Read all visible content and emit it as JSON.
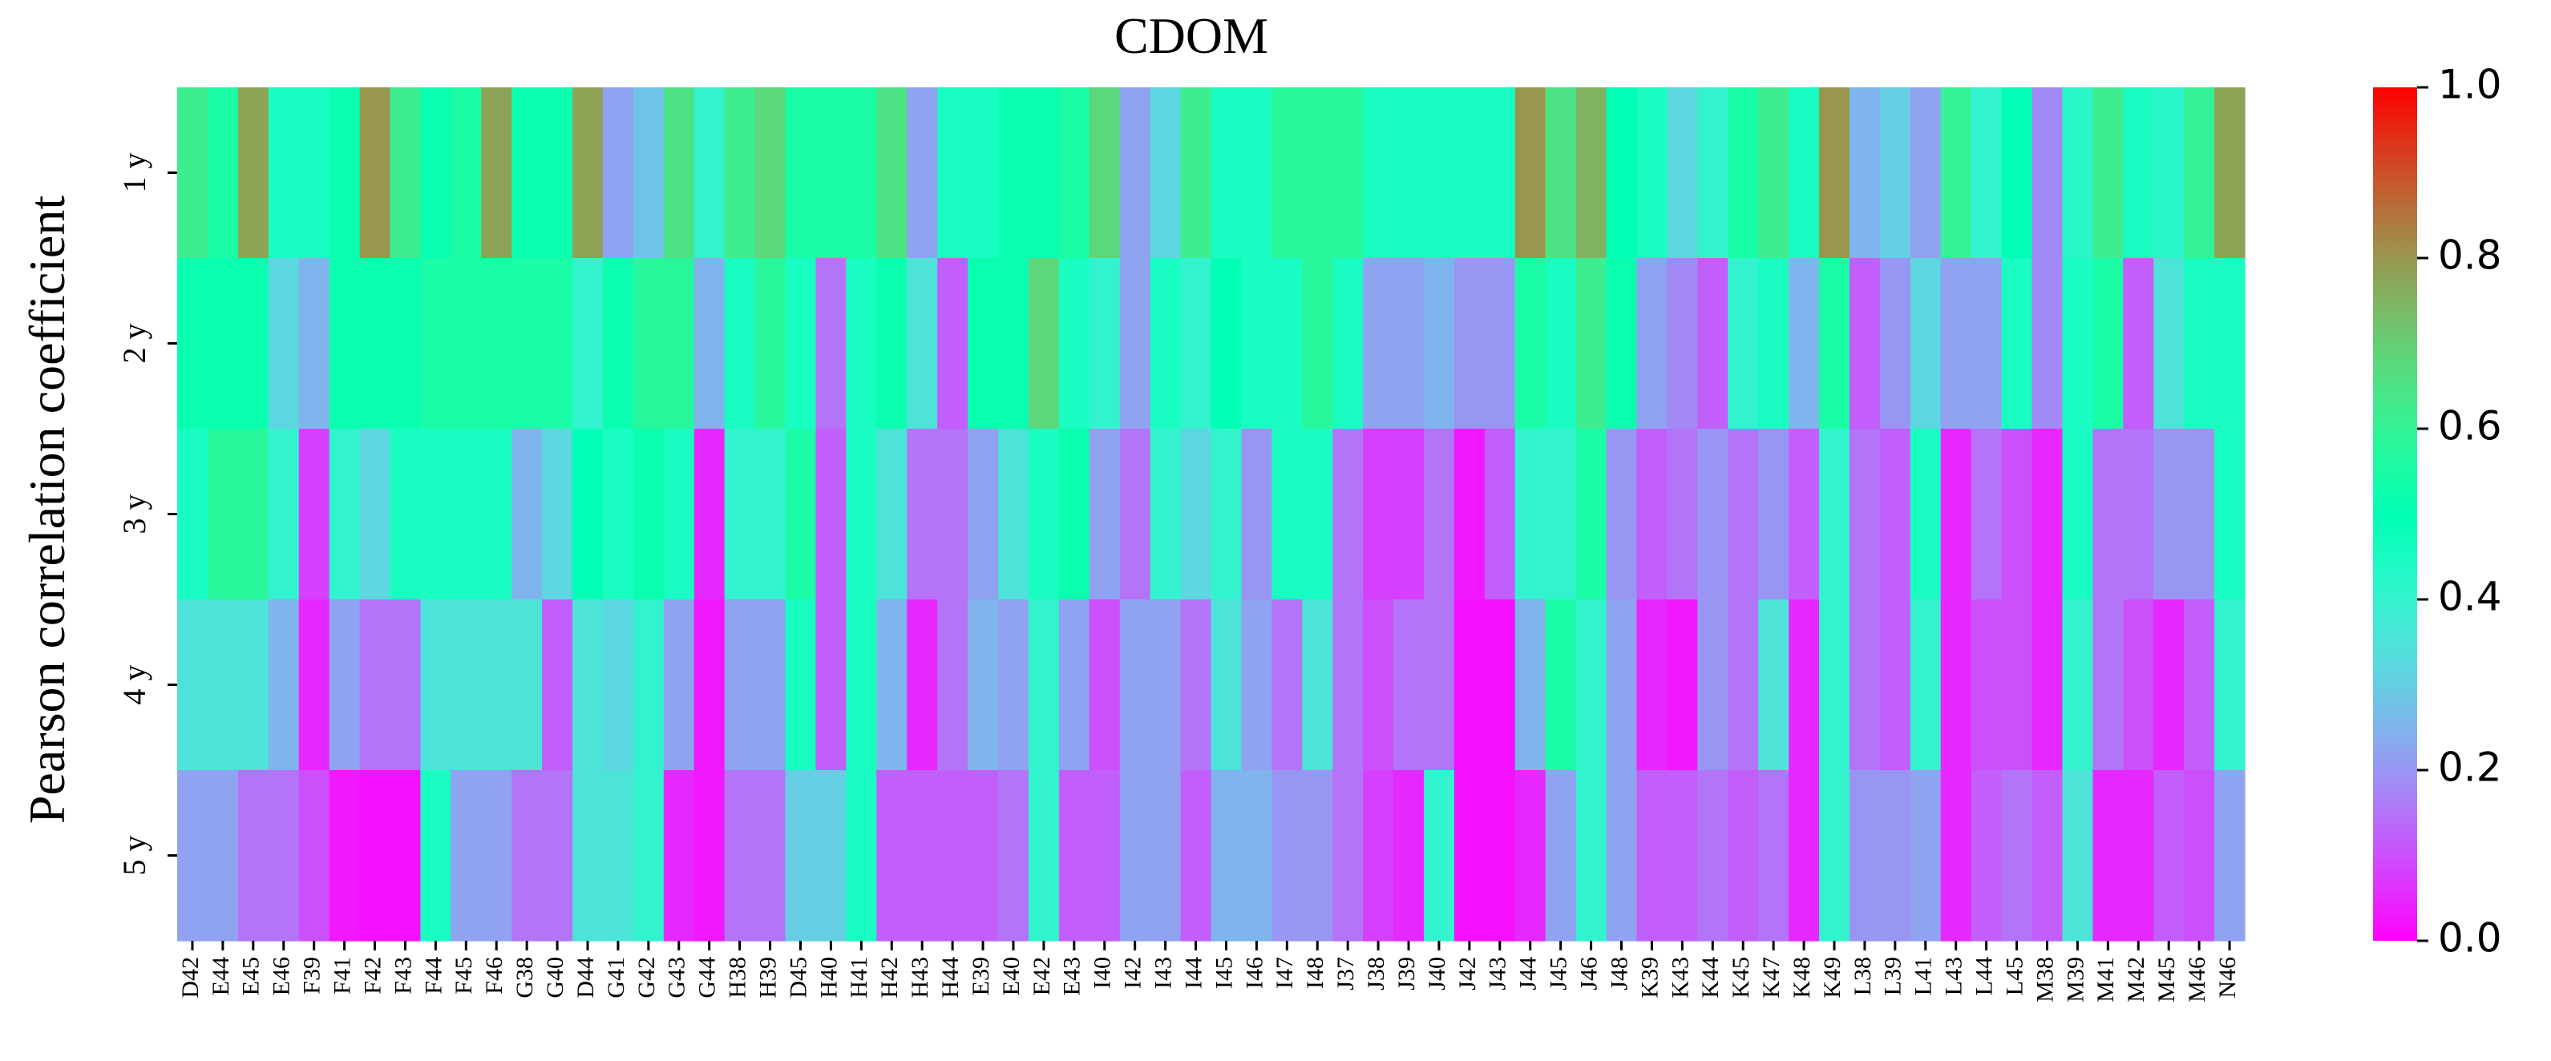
{
  "chart_data": {
    "type": "heatmap",
    "title": "CDOM",
    "ylabel": "Pearson correlation coefficient",
    "xlabel": "",
    "rows": [
      "1 y",
      "2 y",
      "3 y",
      "4 y",
      "5 y"
    ],
    "columns": [
      "D42",
      "E44",
      "E45",
      "E46",
      "F39",
      "F41",
      "F42",
      "F43",
      "F44",
      "F45",
      "F46",
      "G38",
      "G40",
      "D44",
      "G41",
      "G42",
      "G43",
      "G44",
      "H38",
      "H39",
      "D45",
      "H40",
      "H41",
      "H42",
      "H43",
      "H44",
      "E39",
      "E40",
      "E42",
      "E43",
      "I40",
      "I42",
      "I43",
      "I44",
      "I45",
      "I46",
      "I47",
      "I48",
      "J37",
      "J38",
      "J39",
      "J40",
      "J42",
      "J43",
      "J44",
      "J45",
      "J46",
      "J48",
      "K39",
      "K43",
      "K44",
      "K45",
      "K47",
      "K48",
      "K49",
      "L38",
      "L39",
      "L41",
      "L43",
      "L44",
      "L45",
      "M38",
      "M39",
      "M41",
      "M42",
      "M45",
      "M46",
      "N46"
    ],
    "values": [
      [
        0.62,
        0.55,
        0.78,
        0.45,
        0.45,
        0.52,
        0.8,
        0.62,
        0.52,
        0.55,
        0.78,
        0.52,
        0.52,
        0.78,
        0.22,
        0.28,
        0.65,
        0.4,
        0.62,
        0.68,
        0.55,
        0.55,
        0.55,
        0.65,
        0.22,
        0.45,
        0.45,
        0.52,
        0.52,
        0.55,
        0.68,
        0.22,
        0.32,
        0.62,
        0.45,
        0.45,
        0.58,
        0.58,
        0.58,
        0.45,
        0.45,
        0.45,
        0.45,
        0.45,
        0.8,
        0.65,
        0.75,
        0.5,
        0.45,
        0.32,
        0.4,
        0.55,
        0.62,
        0.45,
        0.8,
        0.25,
        0.3,
        0.22,
        0.6,
        0.4,
        0.5,
        0.18,
        0.42,
        0.62,
        0.45,
        0.42,
        0.6,
        0.78
      ],
      [
        0.52,
        0.52,
        0.52,
        0.32,
        0.25,
        0.52,
        0.52,
        0.52,
        0.55,
        0.55,
        0.55,
        0.55,
        0.55,
        0.4,
        0.52,
        0.58,
        0.58,
        0.25,
        0.45,
        0.58,
        0.45,
        0.15,
        0.45,
        0.52,
        0.35,
        0.12,
        0.52,
        0.52,
        0.68,
        0.45,
        0.4,
        0.22,
        0.45,
        0.4,
        0.5,
        0.45,
        0.45,
        0.58,
        0.45,
        0.22,
        0.22,
        0.25,
        0.2,
        0.2,
        0.55,
        0.45,
        0.62,
        0.52,
        0.22,
        0.18,
        0.12,
        0.4,
        0.45,
        0.25,
        0.55,
        0.12,
        0.2,
        0.32,
        0.22,
        0.22,
        0.45,
        0.18,
        0.45,
        0.55,
        0.12,
        0.35,
        0.45,
        0.45
      ],
      [
        0.45,
        0.58,
        0.58,
        0.4,
        0.08,
        0.4,
        0.32,
        0.45,
        0.45,
        0.45,
        0.45,
        0.25,
        0.32,
        0.5,
        0.45,
        0.52,
        0.45,
        0.05,
        0.4,
        0.4,
        0.55,
        0.12,
        0.45,
        0.35,
        0.15,
        0.15,
        0.22,
        0.35,
        0.45,
        0.52,
        0.22,
        0.15,
        0.4,
        0.32,
        0.4,
        0.2,
        0.45,
        0.45,
        0.15,
        0.08,
        0.08,
        0.15,
        0.03,
        0.12,
        0.4,
        0.4,
        0.55,
        0.2,
        0.12,
        0.15,
        0.2,
        0.15,
        0.2,
        0.12,
        0.4,
        0.15,
        0.12,
        0.45,
        0.05,
        0.15,
        0.1,
        0.05,
        0.45,
        0.15,
        0.15,
        0.2,
        0.2,
        0.45
      ],
      [
        0.35,
        0.35,
        0.35,
        0.25,
        0.05,
        0.22,
        0.15,
        0.15,
        0.35,
        0.35,
        0.35,
        0.35,
        0.12,
        0.35,
        0.32,
        0.4,
        0.22,
        0.03,
        0.22,
        0.22,
        0.45,
        0.12,
        0.45,
        0.25,
        0.05,
        0.15,
        0.25,
        0.22,
        0.4,
        0.22,
        0.1,
        0.22,
        0.22,
        0.15,
        0.35,
        0.22,
        0.15,
        0.35,
        0.15,
        0.1,
        0.15,
        0.15,
        0.02,
        0.02,
        0.25,
        0.55,
        0.4,
        0.22,
        0.05,
        0.03,
        0.2,
        0.15,
        0.35,
        0.05,
        0.4,
        0.15,
        0.12,
        0.4,
        0.05,
        0.1,
        0.1,
        0.05,
        0.4,
        0.15,
        0.1,
        0.05,
        0.12,
        0.4
      ],
      [
        0.22,
        0.22,
        0.15,
        0.15,
        0.1,
        0.03,
        0.02,
        0.02,
        0.45,
        0.22,
        0.22,
        0.15,
        0.15,
        0.35,
        0.35,
        0.4,
        0.05,
        0.03,
        0.15,
        0.15,
        0.3,
        0.3,
        0.45,
        0.12,
        0.12,
        0.12,
        0.12,
        0.15,
        0.4,
        0.12,
        0.12,
        0.22,
        0.22,
        0.12,
        0.25,
        0.25,
        0.2,
        0.2,
        0.15,
        0.08,
        0.05,
        0.4,
        0.02,
        0.02,
        0.05,
        0.22,
        0.4,
        0.22,
        0.12,
        0.12,
        0.15,
        0.12,
        0.15,
        0.05,
        0.4,
        0.2,
        0.2,
        0.22,
        0.05,
        0.12,
        0.15,
        0.12,
        0.35,
        0.05,
        0.05,
        0.12,
        0.1,
        0.22
      ]
    ],
    "colorbar": {
      "range": [
        0.0,
        1.0
      ],
      "ticks": [
        "0.0",
        "0.2",
        "0.4",
        "0.6",
        "0.8",
        "1.0"
      ],
      "colormap": "rainbow"
    }
  }
}
